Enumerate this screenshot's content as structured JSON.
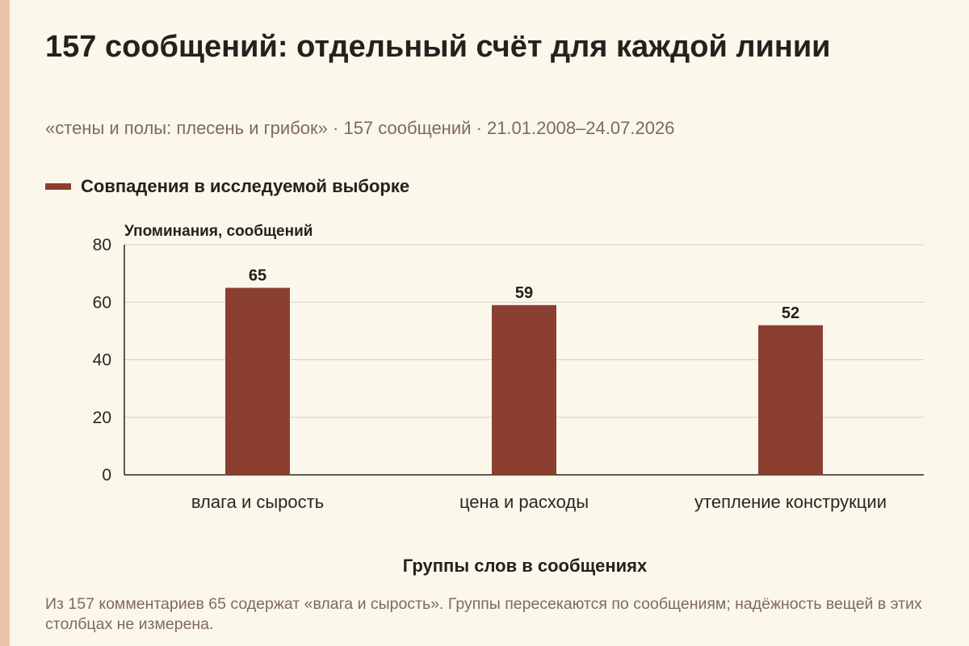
{
  "colors": {
    "background": "#fbf7ea",
    "accent_strip": "#ecc2a6",
    "bar": "#8a3f31",
    "gridline": "#d6d0c8",
    "muted_text": "#7d6a5f"
  },
  "title": "157 сообщений: отдельный счёт для каждой линии",
  "subtitle": "«стены и полы: плесень и грибок» · 157 сообщений · 21.01.2008–24.07.2026",
  "caption": "Из 157 комментариев 65 содержат «влага и сырость». Группы пересекаются по сообщениям; надёжность вещей в этих столбцах не измерена.",
  "chart_data": {
    "type": "bar",
    "title": "157 сообщений: отдельный счёт для каждой линии",
    "xlabel": "Группы слов в сообщениях",
    "ylabel": "Упоминания, сообщений",
    "categories": [
      "влага и сырость",
      "цена и расходы",
      "утепление конструкции"
    ],
    "series": [
      {
        "name": "Совпадения в исследуемой выборке",
        "values": [
          65,
          59,
          52
        ]
      }
    ],
    "ylim": [
      0,
      80
    ],
    "yticks": [
      0,
      20,
      40,
      60,
      80
    ],
    "grid": true,
    "legend_position": "top-left",
    "data_labels": true
  }
}
